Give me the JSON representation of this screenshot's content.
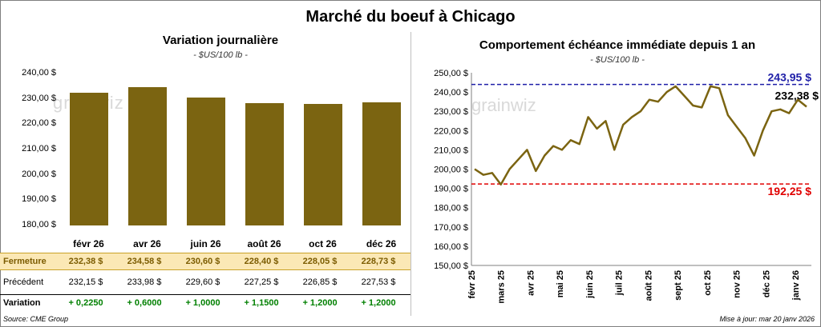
{
  "title": "Marché du boeuf à Chicago",
  "source": "Source: CME Group",
  "updated": "Mise à jour: mar 20 janv 2026",
  "watermark": "grainwiz",
  "colors": {
    "bar": "#7b6411",
    "line": "#7b6411",
    "high": "#1f1fa8",
    "low": "#e00000",
    "close_row_bg": "#fbe8b5",
    "positive": "#008000"
  },
  "table": {
    "close_label": "Fermeture",
    "prev_label": "Précédent",
    "var_label": "Variation",
    "close": [
      "232,38 $",
      "234,58 $",
      "230,60 $",
      "228,40 $",
      "228,05 $",
      "228,73 $"
    ],
    "prev": [
      "232,15 $",
      "233,98 $",
      "229,60 $",
      "227,25 $",
      "226,85 $",
      "227,53 $"
    ],
    "variation": [
      "+ 0,2250",
      "+ 0,6000",
      "+ 1,0000",
      "+ 1,1500",
      "+ 1,2000",
      "+ 1,2000"
    ]
  },
  "chart_data": [
    {
      "type": "bar",
      "title": "Variation journalière",
      "subtitle": "- $US/100 lb -",
      "categories": [
        "févr 26",
        "avr 26",
        "juin 26",
        "août 26",
        "oct 26",
        "déc 26"
      ],
      "values": [
        232.38,
        234.58,
        230.6,
        228.4,
        228.05,
        228.73
      ],
      "ylim": [
        180,
        240
      ],
      "yticks": [
        "180,00 $",
        "190,00 $",
        "200,00 $",
        "210,00 $",
        "220,00 $",
        "230,00 $",
        "240,00 $"
      ],
      "ytick_values": [
        180,
        190,
        200,
        210,
        220,
        230,
        240
      ],
      "grid": false,
      "legend": "none"
    },
    {
      "type": "line",
      "title": "Comportement échéance immédiate depuis 1 an",
      "subtitle": "- $US/100 lb -",
      "x": [
        "févr 25",
        "févr 25",
        "mars 25",
        "mars 25",
        "mars 25",
        "avr 25",
        "avr 25",
        "avr 25",
        "avr 25",
        "mai 25",
        "mai 25",
        "mai 25",
        "juin 25",
        "juin 25",
        "juin 25",
        "juil 25",
        "juil 25",
        "juil 25",
        "juil 25",
        "août 25",
        "août 25",
        "août 25",
        "sept 25",
        "sept 25",
        "sept 25",
        "sept 25",
        "oct 25",
        "oct 25",
        "oct 25",
        "nov 25",
        "nov 25",
        "nov 25",
        "déc 25",
        "déc 25",
        "déc 25",
        "déc 25",
        "janv 26",
        "janv 26",
        "janv 26"
      ],
      "series": [
        {
          "values": [
            200,
            197,
            198,
            192,
            200,
            205,
            210,
            199,
            207,
            212,
            210,
            215,
            213,
            227,
            221,
            225,
            210,
            223,
            227,
            230,
            236,
            235,
            240,
            243,
            238,
            233,
            232,
            243,
            242,
            228,
            222,
            216,
            207,
            220,
            230,
            231,
            229,
            236,
            232.38
          ]
        }
      ],
      "xticks": [
        "févr 25",
        "mars 25",
        "avr 25",
        "mai 25",
        "juin 25",
        "juil 25",
        "août 25",
        "sept 25",
        "oct 25",
        "nov 25",
        "déc 25",
        "janv 26"
      ],
      "ylim": [
        150,
        250
      ],
      "yticks": [
        "150,00 $",
        "160,00 $",
        "170,00 $",
        "180,00 $",
        "190,00 $",
        "200,00 $",
        "210,00 $",
        "220,00 $",
        "230,00 $",
        "240,00 $",
        "250,00 $"
      ],
      "ytick_values": [
        150,
        160,
        170,
        180,
        190,
        200,
        210,
        220,
        230,
        240,
        250
      ],
      "annotations": [
        {
          "label": "243,95 $",
          "value": 243.95,
          "style": "dashed",
          "color": "#1f1fa8"
        },
        {
          "label": "192,25 $",
          "value": 192.25,
          "style": "dashed",
          "color": "#e00000"
        },
        {
          "label": "232,38 $",
          "value": 232.38,
          "color": "#000000"
        }
      ],
      "grid": false,
      "legend": "none"
    }
  ]
}
